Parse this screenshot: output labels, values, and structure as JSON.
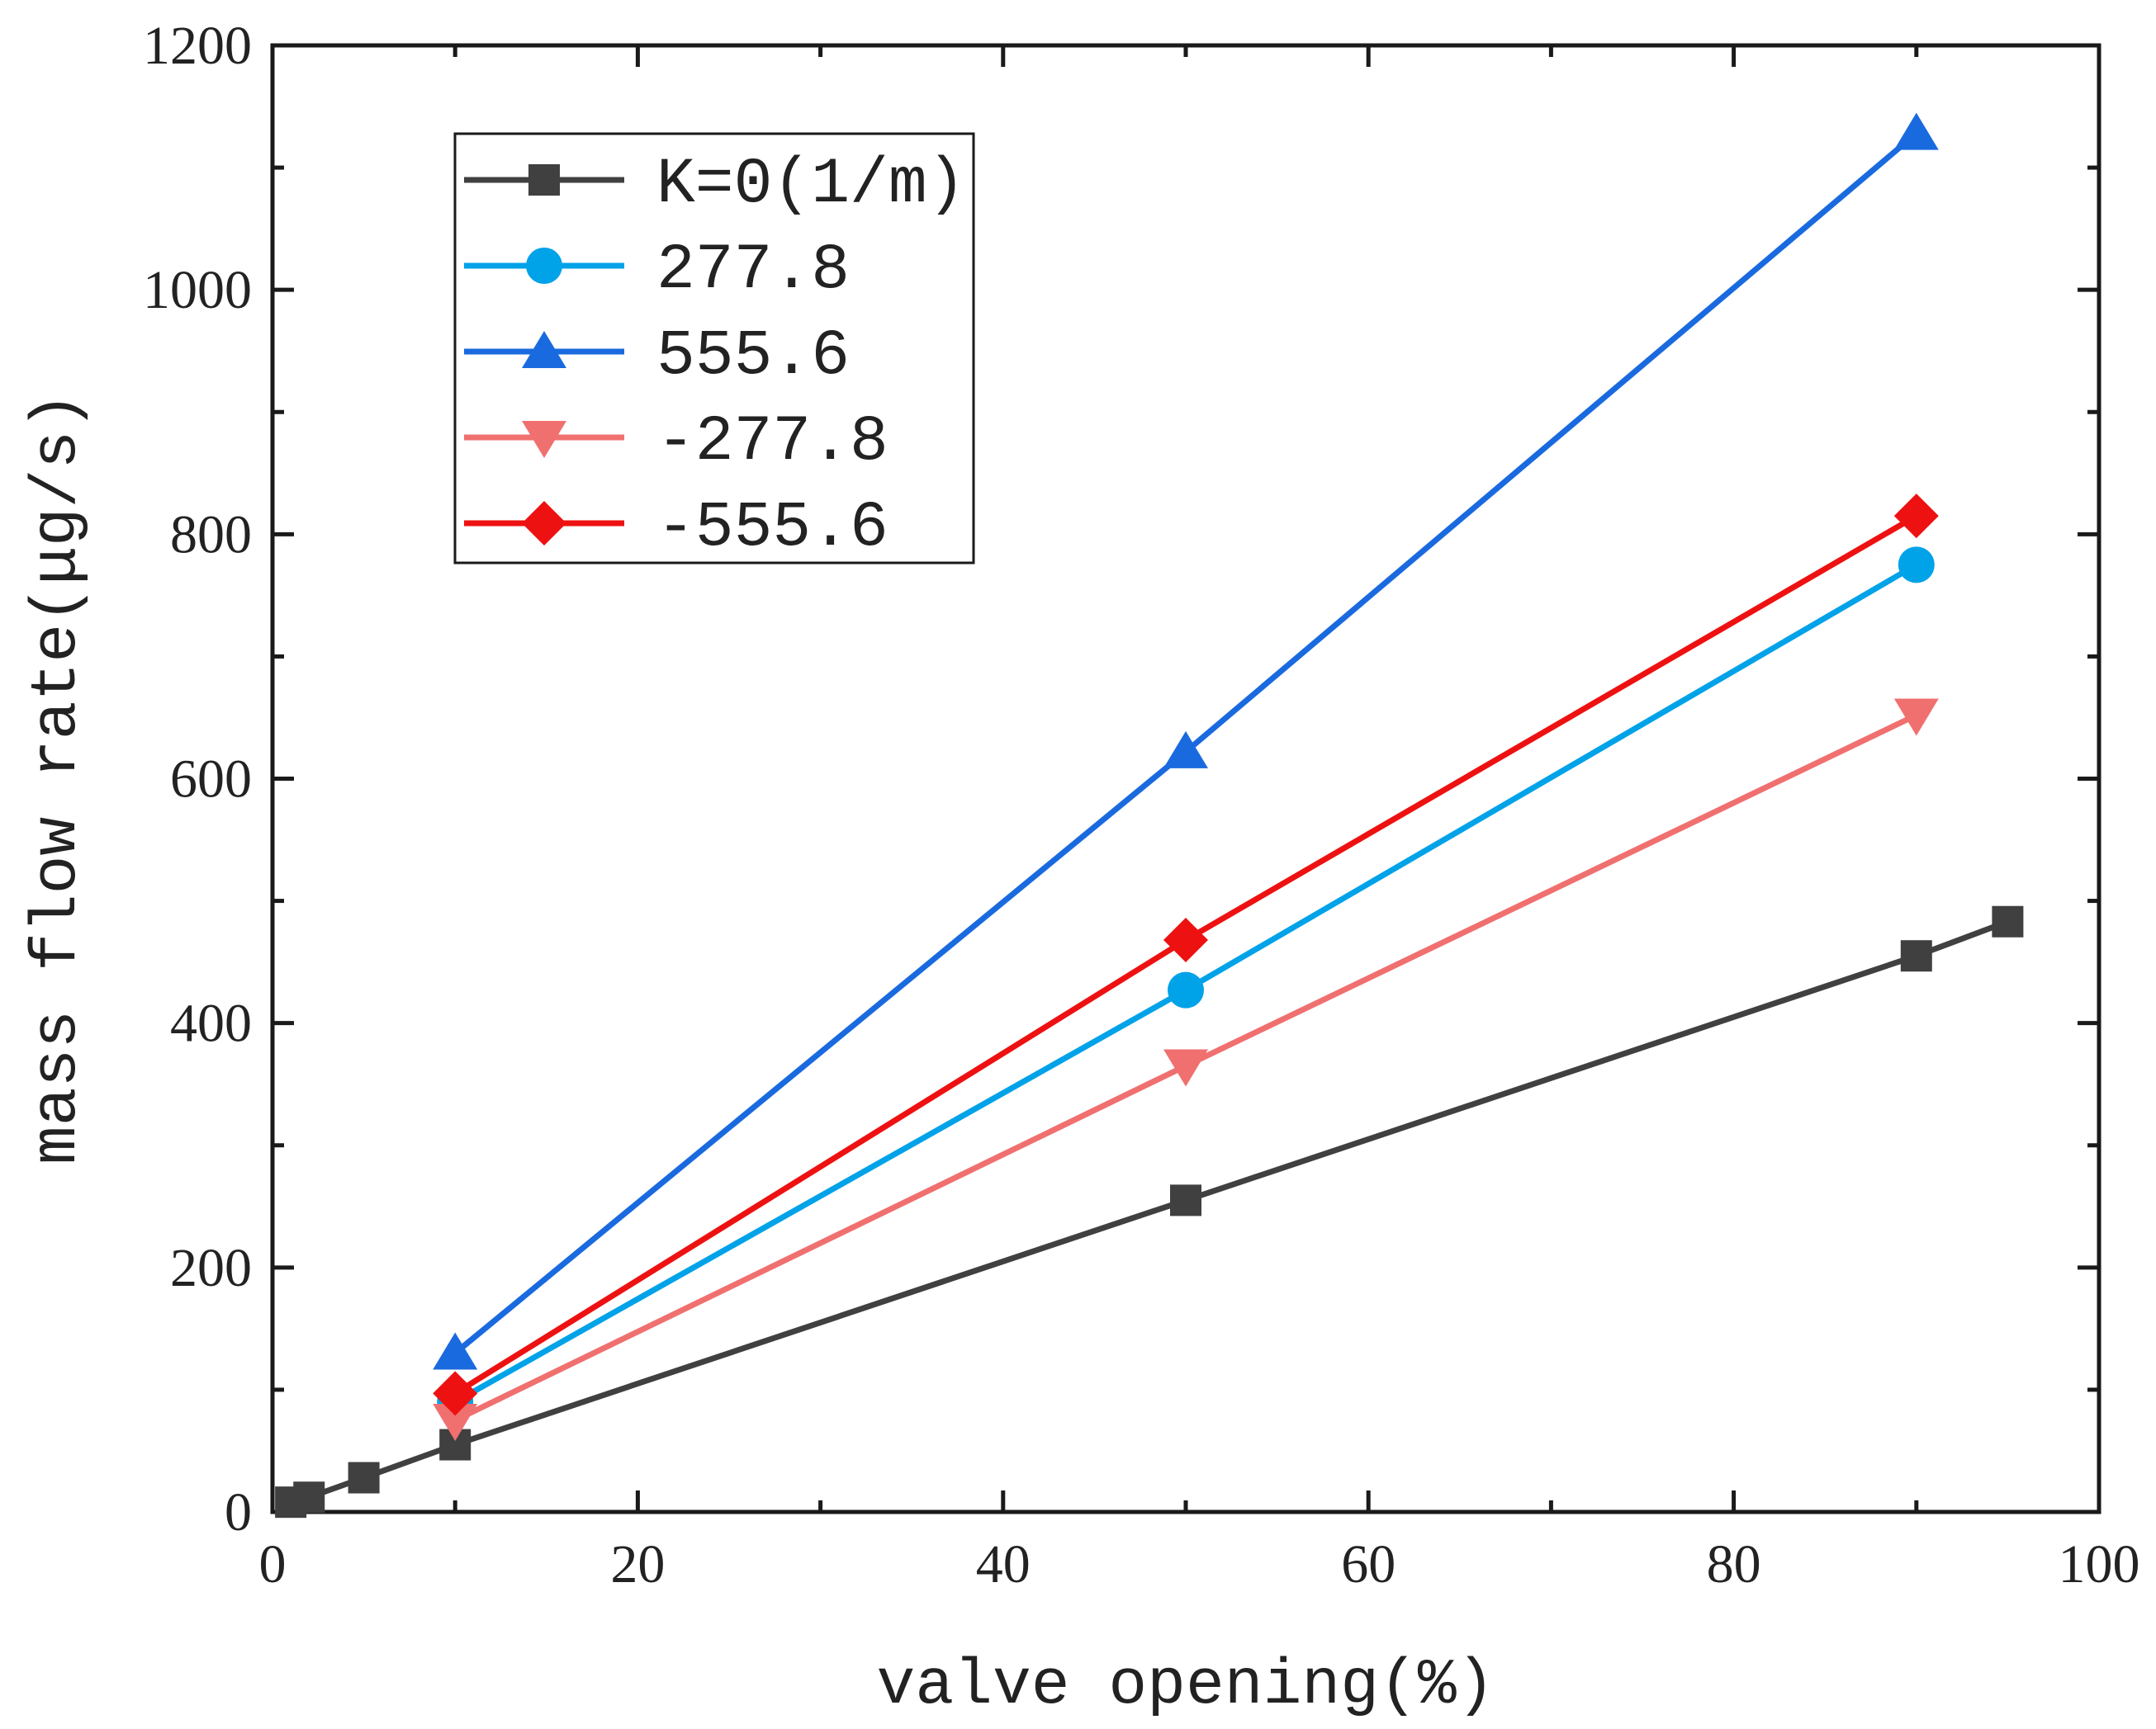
{
  "chart_data": {
    "type": "line",
    "title": "",
    "xlabel": "valve opening(%)",
    "ylabel": "mass flow rate(μg/s)",
    "xlim": [
      0,
      100
    ],
    "ylim": [
      0,
      1200
    ],
    "xticks": [
      0,
      20,
      40,
      60,
      80,
      100
    ],
    "yticks": [
      0,
      200,
      400,
      600,
      800,
      1000,
      1200
    ],
    "grid": false,
    "legend_position": "top-left",
    "series": [
      {
        "name": "K=0(1/m)",
        "color": "#404040",
        "marker": "square",
        "x": [
          1,
          2,
          5,
          10,
          50,
          90,
          95
        ],
        "y": [
          8,
          12,
          28,
          55,
          255,
          455,
          483
        ]
      },
      {
        "name": "277.8",
        "color": "#00a2e8",
        "marker": "circle",
        "x": [
          10,
          50,
          90
        ],
        "y": [
          90,
          427,
          775
        ]
      },
      {
        "name": "555.6",
        "color": "#1a6adf",
        "marker": "triangle-up",
        "x": [
          10,
          50,
          90
        ],
        "y": [
          130,
          622,
          1128
        ]
      },
      {
        "name": "-277.8",
        "color": "#f07070",
        "marker": "triangle-down",
        "x": [
          10,
          50,
          90
        ],
        "y": [
          75,
          365,
          652
        ]
      },
      {
        "name": "-555.6",
        "color": "#ee1111",
        "marker": "diamond",
        "x": [
          10,
          50,
          90
        ],
        "y": [
          97,
          468,
          815
        ]
      }
    ]
  }
}
